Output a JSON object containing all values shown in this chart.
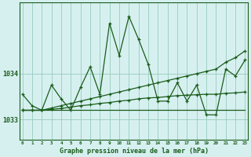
{
  "title": "Graphe pression niveau de la mer (hPa)",
  "background_color": "#d6f0f0",
  "grid_color": "#99ccbb",
  "line_color": "#1a5c1a",
  "x_labels": [
    "0",
    "1",
    "2",
    "3",
    "4",
    "5",
    "6",
    "7",
    "8",
    "9",
    "10",
    "11",
    "12",
    "13",
    "14",
    "15",
    "16",
    "17",
    "18",
    "19",
    "20",
    "21",
    "22",
    "23"
  ],
  "y_ticks": [
    1033,
    1034
  ],
  "ylim": [
    1032.55,
    1035.55
  ],
  "xlim": [
    -0.3,
    23.3
  ],
  "series": {
    "main": [
      1033.55,
      1033.3,
      1033.2,
      1033.75,
      1033.45,
      1033.2,
      1033.7,
      1034.15,
      1033.55,
      1035.1,
      1034.4,
      1035.25,
      1034.75,
      1034.2,
      1033.4,
      1033.4,
      1033.8,
      1033.4,
      1033.75,
      1033.1,
      1033.1,
      1034.1,
      1033.95,
      1034.3
    ],
    "upper": [
      1033.2,
      1033.2,
      1033.2,
      1033.25,
      1033.3,
      1033.35,
      1033.4,
      1033.45,
      1033.5,
      1033.55,
      1033.6,
      1033.65,
      1033.7,
      1033.75,
      1033.8,
      1033.85,
      1033.9,
      1033.95,
      1034.0,
      1034.05,
      1034.1,
      1034.25,
      1034.35,
      1034.5
    ],
    "middle": [
      1033.2,
      1033.2,
      1033.2,
      1033.22,
      1033.24,
      1033.27,
      1033.3,
      1033.32,
      1033.35,
      1033.37,
      1033.4,
      1033.42,
      1033.45,
      1033.47,
      1033.48,
      1033.5,
      1033.52,
      1033.53,
      1033.54,
      1033.55,
      1033.55,
      1033.57,
      1033.58,
      1033.6
    ],
    "lower": [
      1033.2,
      1033.2,
      1033.2,
      1033.2,
      1033.2,
      1033.2,
      1033.2,
      1033.2,
      1033.2,
      1033.2,
      1033.2,
      1033.2,
      1033.2,
      1033.2,
      1033.2,
      1033.2,
      1033.2,
      1033.2,
      1033.2,
      1033.2,
      1033.2,
      1033.2,
      1033.2,
      1033.2
    ]
  }
}
